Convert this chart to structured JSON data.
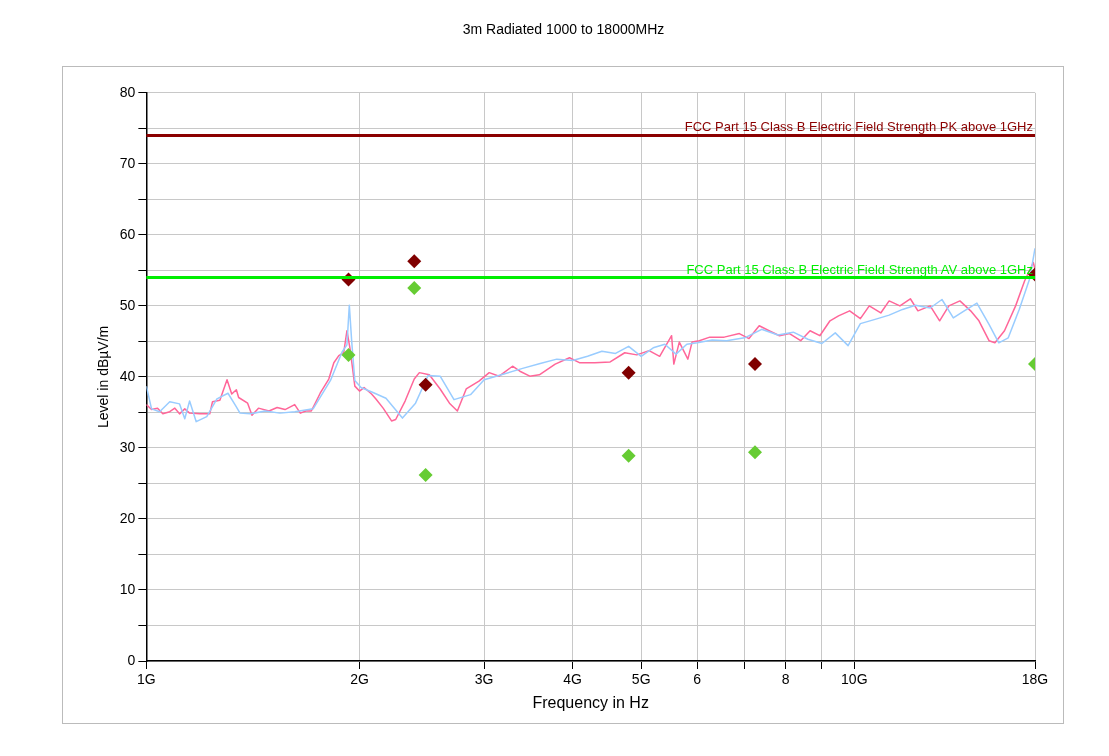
{
  "chart_data": {
    "type": "line",
    "title": "3m Radiated 1000 to 18000MHz",
    "xlabel": "Frequency in Hz",
    "ylabel": "Level in dBµV/m",
    "log": "x",
    "grid": true,
    "legend": false,
    "xlim": [
      1,
      18
    ],
    "xticks": [
      {
        "value": 1,
        "label": "1G"
      },
      {
        "value": 2,
        "label": "2G"
      },
      {
        "value": 3,
        "label": "3G"
      },
      {
        "value": 4,
        "label": "4G"
      },
      {
        "value": 5,
        "label": "5G"
      },
      6,
      {
        "value": 7,
        "label": null
      },
      8,
      {
        "value": 9,
        "label": null
      },
      {
        "value": 10,
        "label": "10G"
      },
      {
        "value": 18,
        "label": "18G"
      }
    ],
    "ylim": [
      0,
      80
    ],
    "yticks": [
      0,
      {
        "value": 5,
        "label": null
      },
      10,
      {
        "value": 15,
        "label": null
      },
      20,
      {
        "value": 25,
        "label": null
      },
      30,
      {
        "value": 35,
        "label": null
      },
      40,
      {
        "value": 45,
        "label": null
      },
      50,
      {
        "value": 55,
        "label": null
      },
      60,
      {
        "value": 65,
        "label": null
      },
      70,
      {
        "value": 75,
        "label": null
      },
      80
    ],
    "ref_lines": [
      {
        "axis": "y",
        "value": 74,
        "label": "FCC Part 15 Class B Electric Field Strength PK above 1GHz",
        "color": "#8b0000"
      },
      {
        "axis": "y",
        "value": 54,
        "label": "FCC Part 15 Class B Electric Field Strength AV above 1GHz",
        "color": "#00ee00"
      }
    ],
    "series": [
      {
        "color": "#ff6699",
        "x": [
          1,
          1.017,
          1.037,
          1.055,
          1.079,
          1.097,
          1.114,
          1.133,
          1.151,
          1.19,
          1.229,
          1.24,
          1.27,
          1.3,
          1.32,
          1.34,
          1.35,
          1.39,
          1.41,
          1.44,
          1.49,
          1.53,
          1.57,
          1.62,
          1.65,
          1.68,
          1.71,
          1.76,
          1.81,
          1.84,
          1.87,
          1.9,
          1.92,
          1.94,
          1.97,
          2,
          2.03,
          2.08,
          2.11,
          2.16,
          2.22,
          2.25,
          2.32,
          2.39,
          2.43,
          2.51,
          2.6,
          2.68,
          2.75,
          2.83,
          2.95,
          3.05,
          3.15,
          3.29,
          3.37,
          3.48,
          3.59,
          3.78,
          3.96,
          4.09,
          4.3,
          4.52,
          4.74,
          4.93,
          5.13,
          5.31,
          5.52,
          5.56,
          5.66,
          5.82,
          5.9,
          6.04,
          6.25,
          6.55,
          6.88,
          7.1,
          7.34,
          7.58,
          7.84,
          8.1,
          8.4,
          8.66,
          8.94,
          9.24,
          9.5,
          9.85,
          10.2,
          10.5,
          10.9,
          11.2,
          11.6,
          12,
          12.3,
          12.8,
          13.2,
          13.6,
          14.1,
          14.6,
          15,
          15.5,
          15.8,
          16.3,
          16.9,
          17.4,
          17.9,
          18
        ],
        "values": [
          36.1,
          35.4,
          35.6,
          34.8,
          35.1,
          35.6,
          34.8,
          35.5,
          34.9,
          34.8,
          34.8,
          36.5,
          36.7,
          39.6,
          37.6,
          38.2,
          37.1,
          36.3,
          34.6,
          35.6,
          35.2,
          35.7,
          35.4,
          36.1,
          34.9,
          35.2,
          35.2,
          37.7,
          39.7,
          42,
          43,
          43.4,
          46.5,
          43.9,
          38.7,
          38,
          38.5,
          37.6,
          36.9,
          35.6,
          33.8,
          34,
          36.6,
          39.7,
          40.6,
          40.3,
          38.3,
          36.3,
          35.2,
          38.3,
          39.4,
          40.6,
          40.1,
          41.5,
          40.8,
          40.1,
          40.3,
          41.8,
          42.7,
          42,
          42,
          42.1,
          43.4,
          43.1,
          43.7,
          42.9,
          45.8,
          41.8,
          44.9,
          42.5,
          44.9,
          45.1,
          45.6,
          45.6,
          46.1,
          45.4,
          47.2,
          46.5,
          45.8,
          46.1,
          45.1,
          46.5,
          45.8,
          47.9,
          48.6,
          49.3,
          48.2,
          50,
          49,
          50.7,
          50,
          51,
          49.3,
          50,
          47.9,
          50,
          50.7,
          49.3,
          47.9,
          45.1,
          44.8,
          46.5,
          50,
          53.5,
          56.1,
          55.2
        ]
      },
      {
        "color": "#99ccff",
        "x": [
          1,
          1.017,
          1.044,
          1.079,
          1.114,
          1.133,
          1.151,
          1.176,
          1.217,
          1.258,
          1.304,
          1.338,
          1.356,
          1.402,
          1.472,
          1.544,
          1.621,
          1.72,
          1.82,
          1.89,
          1.92,
          1.935,
          1.95,
          1.97,
          2.01,
          2.09,
          2.18,
          2.3,
          2.4,
          2.5,
          2.6,
          2.72,
          2.87,
          3,
          3.2,
          3.4,
          3.6,
          3.8,
          4,
          4.2,
          4.4,
          4.6,
          4.8,
          5,
          5.2,
          5.4,
          5.6,
          5.8,
          6,
          6.3,
          6.6,
          7,
          7.4,
          7.8,
          8.2,
          8.6,
          9,
          9.4,
          9.8,
          10.2,
          10.7,
          11.2,
          11.7,
          12.2,
          12.8,
          13.3,
          13.8,
          14.3,
          14.9,
          15.5,
          16,
          16.5,
          17.1,
          17.7,
          18
        ],
        "values": [
          38.7,
          35.5,
          35.1,
          36.5,
          36.2,
          34.1,
          36.6,
          33.7,
          34.4,
          36.9,
          37.7,
          35.9,
          34.9,
          34.8,
          35.2,
          34.9,
          35.1,
          35.5,
          39.5,
          43.5,
          44.5,
          50.1,
          45,
          39.5,
          38.5,
          37.8,
          37,
          34.2,
          36.3,
          40.2,
          40.1,
          36.8,
          37.5,
          39.6,
          40.4,
          41.2,
          41.9,
          42.5,
          42.3,
          42.9,
          43.6,
          43.3,
          44.3,
          42.9,
          44.1,
          44.6,
          43.2,
          44.6,
          44.8,
          45.2,
          45.1,
          45.5,
          46.7,
          45.9,
          46.3,
          45.3,
          44.7,
          46.2,
          44.4,
          47.5,
          48.1,
          48.7,
          49.5,
          50.1,
          49.7,
          50.9,
          48.3,
          49.3,
          50.4,
          47.4,
          44.8,
          45.5,
          49.5,
          53.9,
          58.1
        ]
      },
      {
        "type": "scatter",
        "color": "#800000",
        "marker": "diamond",
        "x": [
          1.93,
          2.39,
          2.48,
          4.8,
          7.24,
          18
        ],
        "values": [
          53.7,
          56.3,
          38.9,
          40.6,
          41.8,
          54.4
        ]
      },
      {
        "type": "scatter",
        "color": "#66cc33",
        "marker": "diamond",
        "x": [
          1.93,
          2.39,
          2.48,
          4.8,
          7.24,
          18
        ],
        "values": [
          43.1,
          52.5,
          26.2,
          28.9,
          29.4,
          41.8
        ]
      }
    ]
  }
}
